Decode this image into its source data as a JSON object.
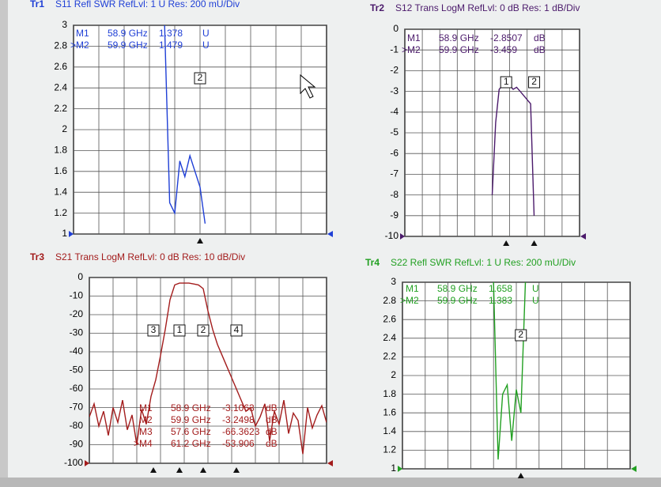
{
  "chart_data": [
    {
      "type": "line",
      "trace": "Tr1",
      "title": "S11 Refl SWR RefLvl: 1  U Res: 200 mU/Div",
      "color": "#1f3fd6",
      "ylim": [
        1,
        3
      ],
      "yticks": [
        1,
        1.2,
        1.4,
        1.6,
        1.8,
        2,
        2.2,
        2.4,
        2.6,
        2.8,
        3
      ],
      "grid": true,
      "values": [
        null,
        null,
        null,
        null,
        null,
        null,
        null,
        null,
        null,
        null,
        null,
        null,
        null,
        null,
        null,
        null,
        null,
        null,
        3,
        1.3,
        1.2,
        1.7,
        1.55,
        1.75,
        1.6,
        1.45,
        1.1,
        null,
        null,
        null,
        null,
        null,
        null,
        null,
        null,
        null,
        null,
        null,
        null,
        null,
        null,
        null,
        null,
        null,
        null,
        null,
        null,
        null,
        null,
        null,
        null
      ],
      "markers": [
        {
          "name": "M1",
          "freq": "58.9 GHz",
          "value": "1.378",
          "unit": "U"
        },
        {
          "name": ">M2",
          "freq": "59.9 GHz",
          "value": "1.479",
          "unit": "U",
          "flag": "2"
        }
      ]
    },
    {
      "type": "line",
      "trace": "Tr2",
      "title": "S12 Trans LogM RefLvl: 0  dB Res: 1  dB/Div",
      "color": "#4b1a6b",
      "ylim": [
        -10,
        0
      ],
      "yticks": [
        0,
        -1,
        -2,
        -3,
        -4,
        -5,
        -6,
        -7,
        -8,
        -9,
        -10
      ],
      "grid": true,
      "values": [
        null,
        null,
        null,
        null,
        null,
        null,
        null,
        null,
        null,
        null,
        null,
        null,
        null,
        null,
        null,
        null,
        null,
        null,
        null,
        null,
        null,
        null,
        null,
        null,
        null,
        -8,
        -4.5,
        -2.9,
        -2.7,
        -2.8,
        -2.7,
        -2.9,
        -2.8,
        -3,
        -3.2,
        -3.4,
        -3.6,
        -9,
        null,
        null,
        null,
        null,
        null,
        null,
        null,
        null,
        null,
        null,
        null,
        null,
        null
      ],
      "markers": [
        {
          "name": "M1",
          "freq": "58.9 GHz",
          "value": "-2.8507",
          "unit": "dB",
          "flag": "1"
        },
        {
          "name": ">M2",
          "freq": "59.9 GHz",
          "value": "-3.459",
          "unit": "dB",
          "flag": "2"
        }
      ]
    },
    {
      "type": "line",
      "trace": "Tr3",
      "title": "S21 Trans LogM RefLvl: 0  dB Res: 10  dB/Div",
      "color": "#a31c1c",
      "ylim": [
        -100,
        0
      ],
      "yticks": [
        0,
        -10,
        -20,
        -30,
        -40,
        -50,
        -60,
        -70,
        -80,
        -90,
        -100
      ],
      "grid": true,
      "values": [
        -75,
        -68,
        -80,
        -72,
        -85,
        -70,
        -78,
        -66,
        -82,
        -74,
        -90,
        -71,
        -79,
        -64,
        -55,
        -42,
        -28,
        -12,
        -4,
        -3,
        -3,
        -3,
        -3.5,
        -4,
        -6,
        -18,
        -28,
        -36,
        -42,
        -48,
        -54,
        -60,
        -66,
        -72,
        -70,
        -80,
        -75,
        -68,
        -88,
        -72,
        -79,
        -66,
        -84,
        -73,
        -77,
        -95,
        -70,
        -81,
        -74,
        -69,
        -78
      ],
      "markers": [
        {
          "name": "M1",
          "freq": "58.9 GHz",
          "value": "-3.1063",
          "unit": "dB",
          "flag": "1"
        },
        {
          "name": "M2",
          "freq": "59.9 GHz",
          "value": "-3.2498",
          "unit": "dB",
          "flag": "2"
        },
        {
          "name": "M3",
          "freq": "57.6 GHz",
          "value": "-66.3623",
          "unit": "dB",
          "flag": "3"
        },
        {
          "name": ">M4",
          "freq": "61.2 GHz",
          "value": "-53.906",
          "unit": "dB",
          "flag": "4"
        }
      ]
    },
    {
      "type": "line",
      "trace": "Tr4",
      "title": "S22 Refl SWR RefLvl: 1  U Res: 200 mU/Div",
      "color": "#22a022",
      "ylim": [
        1,
        3
      ],
      "yticks": [
        1,
        1.2,
        1.4,
        1.6,
        1.8,
        2,
        2.2,
        2.4,
        2.6,
        2.8,
        3
      ],
      "grid": true,
      "values": [
        null,
        null,
        null,
        null,
        null,
        null,
        null,
        null,
        null,
        null,
        null,
        null,
        null,
        null,
        null,
        null,
        null,
        null,
        null,
        null,
        3,
        1.1,
        1.8,
        1.9,
        1.3,
        1.85,
        1.6,
        3,
        null,
        null,
        null,
        null,
        null,
        null,
        null,
        null,
        null,
        null,
        null,
        null,
        null,
        null,
        null,
        null,
        null,
        null,
        null,
        null,
        null,
        null,
        null
      ],
      "markers": [
        {
          "name": "M1",
          "freq": "58.9 GHz",
          "value": "1.658",
          "unit": "U"
        },
        {
          "name": ">M2",
          "freq": "59.9 GHz",
          "value": "1.383",
          "unit": "U",
          "flag": "2"
        }
      ]
    }
  ]
}
